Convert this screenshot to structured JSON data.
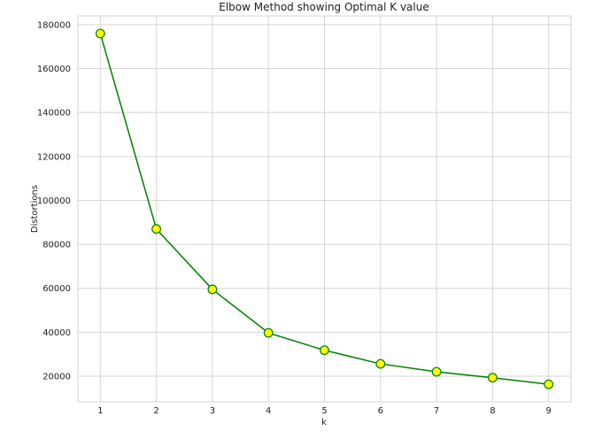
{
  "chart_data": {
    "type": "line",
    "title": "Elbow Method showing Optimal K value",
    "xlabel": "k",
    "ylabel": "Distortions",
    "x": [
      1,
      2,
      3,
      4,
      5,
      6,
      7,
      8,
      9
    ],
    "series": [
      {
        "values": [
          176000,
          87000,
          59500,
          39700,
          31800,
          25600,
          22000,
          19300,
          16300
        ]
      }
    ],
    "xticks": [
      1,
      2,
      3,
      4,
      5,
      6,
      7,
      8,
      9
    ],
    "yticks": [
      20000,
      40000,
      60000,
      80000,
      100000,
      120000,
      140000,
      160000,
      180000
    ],
    "xlim": [
      0.6,
      9.4
    ],
    "ylim": [
      8300,
      184000
    ],
    "grid": true,
    "colors": {
      "line": "#008000",
      "marker_fill": "#ffff00",
      "marker_edge": "#008000",
      "frame": "#d5d5d5"
    }
  }
}
